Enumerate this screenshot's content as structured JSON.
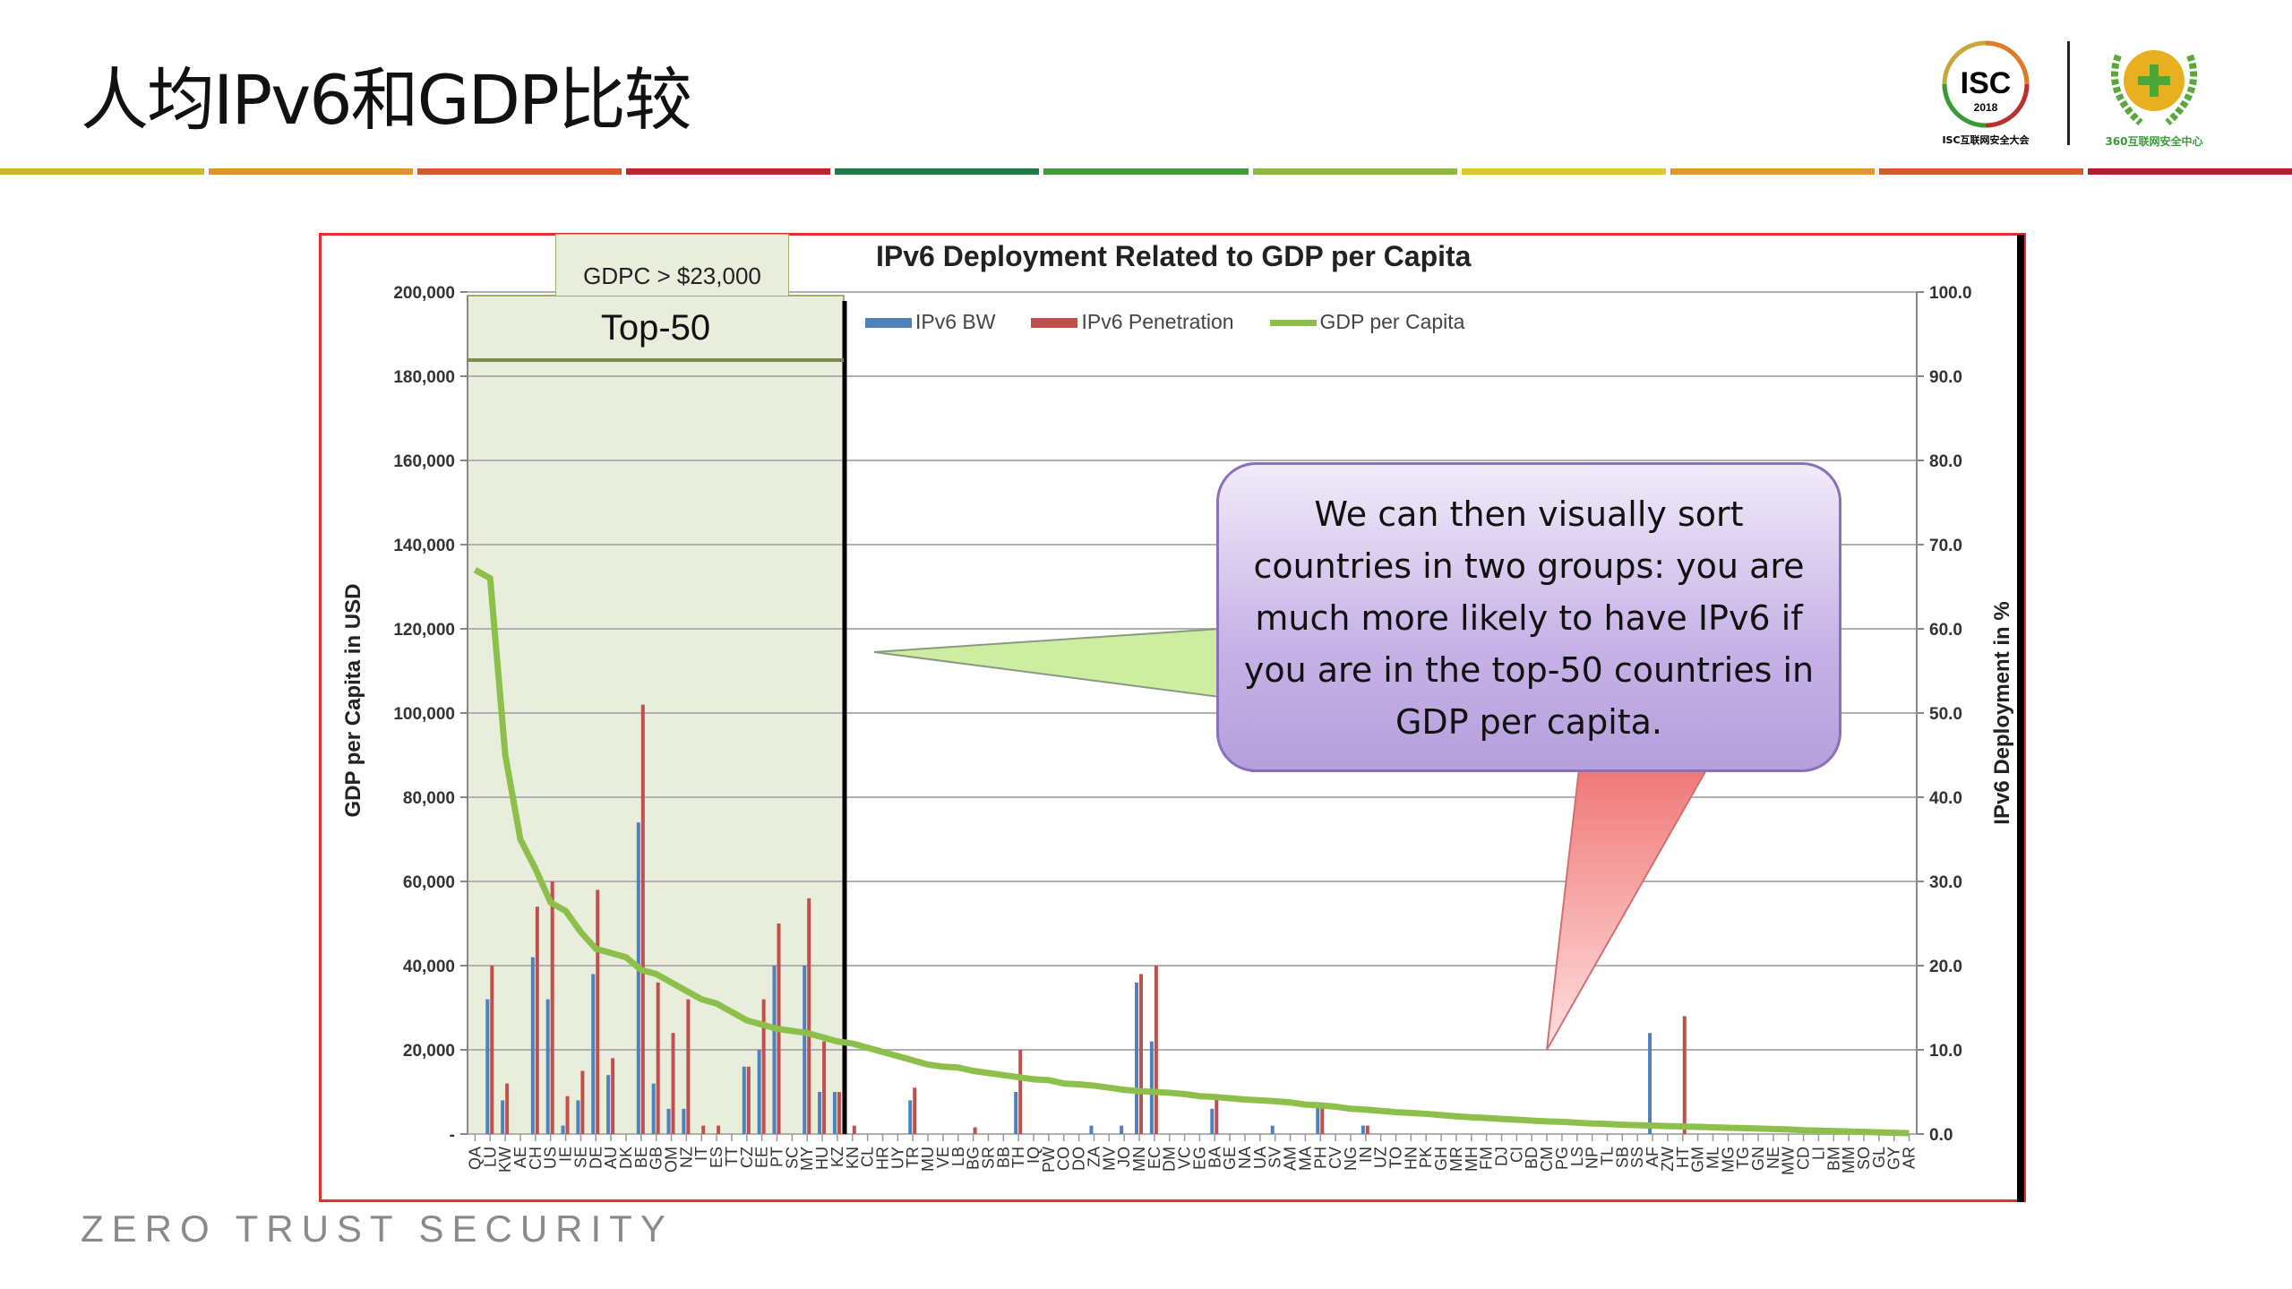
{
  "slide": {
    "title": "人均IPv6和GDP比较",
    "footer": "ZERO TRUST SECURITY",
    "logos": {
      "isc": "ISC",
      "isc_year": "2018",
      "isc_caption": "ISC互联网安全大会",
      "q360_caption": "360互联网安全中心"
    },
    "stripe_colors": [
      "#c8b830",
      "#e3922a",
      "#d9572a",
      "#b8262e",
      "#1f7a4a",
      "#3f9a3a",
      "#8db83a",
      "#d8c832",
      "#e5962c",
      "#d65a2a",
      "#b02030"
    ]
  },
  "annotations": {
    "gdpc_label": "GDPC > $23,000",
    "top50_label": "Top-50",
    "callout_text": "We can then visually sort countries in two groups: you are much more likely to have IPv6 if you are in the top-50 countries in GDP per capita."
  },
  "chart_data": {
    "type": "bar",
    "title": "IPv6 Deployment Related to GDP per Capita",
    "ylabel": "GDP per Capita in USD",
    "y2label": "IPv6 Deployment in %",
    "ylim": [
      0,
      200000
    ],
    "y2lim": [
      0,
      100
    ],
    "yticks": [
      "-",
      "20,000",
      "40,000",
      "60,000",
      "80,000",
      "100,000",
      "120,000",
      "140,000",
      "160,000",
      "180,000",
      "200,000"
    ],
    "y2ticks": [
      "0.0",
      "10.0",
      "20.0",
      "30.0",
      "40.0",
      "50.0",
      "60.0",
      "70.0",
      "80.0",
      "90.0",
      "100.0"
    ],
    "legend_position": "top",
    "colors": {
      "bw": "#4f81bd",
      "pen": "#c0504d",
      "gdp": "#8cc04a"
    },
    "categories": [
      "QA",
      "LU",
      "KW",
      "AE",
      "CH",
      "US",
      "IE",
      "SE",
      "DE",
      "AU",
      "DK",
      "BE",
      "GB",
      "OM",
      "NZ",
      "IT",
      "ES",
      "TT",
      "CZ",
      "EE",
      "PT",
      "SC",
      "MY",
      "HU",
      "KZ",
      "KN",
      "CL",
      "HR",
      "UY",
      "TR",
      "MU",
      "VE",
      "LB",
      "BG",
      "SR",
      "BB",
      "TH",
      "IQ",
      "PW",
      "CO",
      "DO",
      "ZA",
      "MV",
      "JO",
      "MN",
      "EC",
      "DM",
      "VC",
      "EG",
      "BA",
      "GE",
      "NA",
      "UA",
      "SV",
      "AM",
      "MA",
      "PH",
      "CV",
      "NG",
      "IN",
      "UZ",
      "TO",
      "HN",
      "PK",
      "GH",
      "MR",
      "MH",
      "FM",
      "DJ",
      "CI",
      "BD",
      "CM",
      "PG",
      "LS",
      "NP",
      "TL",
      "SB",
      "SS",
      "AF",
      "ZW",
      "HT",
      "GM",
      "ML",
      "MG",
      "TG",
      "GN",
      "NE",
      "MW",
      "CD",
      "LI",
      "BM",
      "MM",
      "SO",
      "GL",
      "GY",
      "AR"
    ],
    "series": [
      {
        "name": "IPv6 BW",
        "values": [
          0,
          16,
          4,
          0,
          21,
          16,
          1,
          4,
          19,
          7,
          0,
          37,
          6,
          3,
          3,
          0,
          0,
          0,
          8,
          10,
          20,
          0,
          20,
          5,
          5,
          0,
          0,
          0,
          0,
          4,
          0,
          0,
          0,
          0,
          0,
          0,
          5,
          0,
          0,
          0,
          0,
          1,
          0,
          1,
          18,
          11,
          0,
          0,
          0,
          3,
          0,
          0,
          0,
          1,
          0,
          0,
          3.5,
          0,
          0,
          1,
          0,
          0,
          0,
          0,
          0,
          0,
          0,
          0,
          0,
          0,
          0,
          0,
          0,
          0,
          0,
          0,
          0,
          0,
          12,
          0,
          0,
          0,
          0,
          0,
          0,
          0,
          0,
          0,
          0,
          0,
          0,
          0,
          0,
          0,
          0,
          0
        ]
      },
      {
        "name": "IPv6 Penetration",
        "values": [
          0,
          20,
          6,
          0,
          27,
          30,
          4.5,
          7.5,
          29,
          9,
          0,
          51,
          18,
          12,
          16,
          1,
          1,
          0,
          8,
          16,
          25,
          0,
          28,
          11,
          5,
          1,
          0,
          0,
          0,
          5.5,
          0,
          0,
          0,
          0.8,
          0,
          0,
          10,
          0,
          0,
          0,
          0,
          0,
          0,
          0,
          19,
          20,
          0,
          0,
          0,
          4.5,
          0,
          0,
          0,
          0,
          0,
          0,
          3.5,
          0,
          0,
          1,
          0,
          0,
          0,
          0,
          0,
          0,
          0,
          0,
          0,
          0,
          0,
          0,
          0,
          0,
          0,
          0,
          0,
          0,
          0,
          0,
          14,
          0,
          0,
          0,
          0,
          0,
          0,
          0,
          0,
          0,
          0,
          0,
          0,
          0,
          0,
          0
        ]
      },
      {
        "name": "GDP per Capita",
        "values": [
          134000,
          132000,
          90000,
          70000,
          63000,
          55000,
          53000,
          48000,
          44000,
          43000,
          42000,
          39000,
          38000,
          36000,
          34000,
          32000,
          31000,
          29000,
          27000,
          26000,
          25000,
          24500,
          24000,
          23000,
          22000,
          21500,
          20500,
          19500,
          18500,
          17500,
          16500,
          16000,
          15800,
          15000,
          14500,
          14000,
          13500,
          13000,
          12800,
          12000,
          11800,
          11500,
          11000,
          10500,
          10200,
          10000,
          9800,
          9500,
          9000,
          8800,
          8500,
          8200,
          8000,
          7800,
          7500,
          7000,
          6800,
          6500,
          6000,
          5800,
          5500,
          5200,
          5000,
          4800,
          4500,
          4200,
          4000,
          3800,
          3600,
          3400,
          3200,
          3000,
          2900,
          2700,
          2500,
          2400,
          2200,
          2100,
          2000,
          1900,
          1800,
          1700,
          1600,
          1500,
          1400,
          1300,
          1200,
          1100,
          900,
          800,
          700,
          600,
          500,
          400,
          300,
          200
        ]
      }
    ]
  }
}
